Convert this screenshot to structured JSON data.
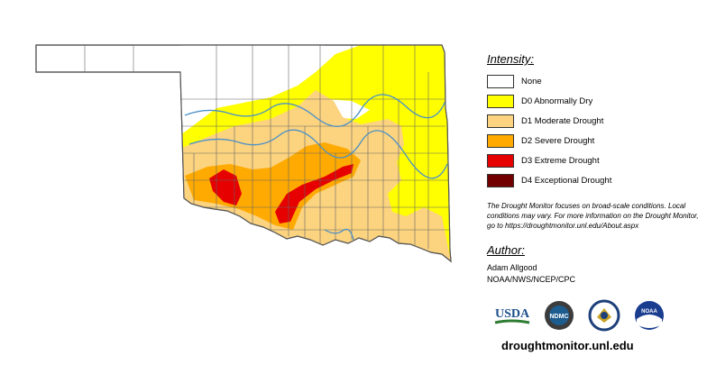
{
  "legend": {
    "heading": "Intensity:",
    "items": [
      {
        "label": "None",
        "color": "#ffffff"
      },
      {
        "label": "D0 Abnormally Dry",
        "color": "#ffff00"
      },
      {
        "label": "D1 Moderate Drought",
        "color": "#fcd37f"
      },
      {
        "label": "D2 Severe Drought",
        "color": "#ffaa00"
      },
      {
        "label": "D3 Extreme Drought",
        "color": "#e60000"
      },
      {
        "label": "D4 Exceptional Drought",
        "color": "#730000"
      }
    ],
    "note": "The Drought Monitor focuses on broad-scale conditions. Local conditions may vary. For more information on the Drought Monitor, go to https://droughtmonitor.unl.edu/About.aspx"
  },
  "author": {
    "heading": "Author:",
    "name": "Adam Allgood",
    "org": "NOAA/NWS/NCEP/CPC"
  },
  "logos": {
    "usda": "USDA",
    "ndmc": "NDMC",
    "noaa": "NOAA"
  },
  "site": "droughtmonitor.unl.edu",
  "map_colors": {
    "border": "#555555",
    "river": "#4a90c8"
  }
}
